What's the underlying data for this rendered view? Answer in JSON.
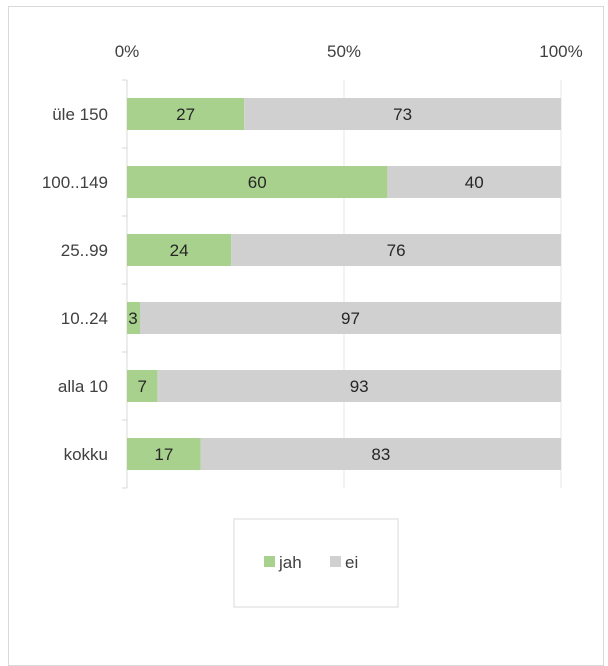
{
  "chart_data": {
    "type": "bar",
    "orientation": "horizontal",
    "stacked": "percent",
    "categories": [
      "üle 150",
      "100..149",
      "25..99",
      "10..24",
      "alla 10",
      "kokku"
    ],
    "series": [
      {
        "name": "jah",
        "values": [
          27,
          60,
          24,
          3,
          7,
          17
        ],
        "color": "#a9d18e"
      },
      {
        "name": "ei",
        "values": [
          73,
          40,
          76,
          97,
          93,
          83
        ],
        "color": "#d0d0d0"
      }
    ],
    "x_ticks": [
      "0%",
      "50%",
      "100%"
    ],
    "xlim": [
      0,
      100
    ],
    "x_axis_position": "top",
    "grid": true,
    "legend_position": "bottom"
  }
}
